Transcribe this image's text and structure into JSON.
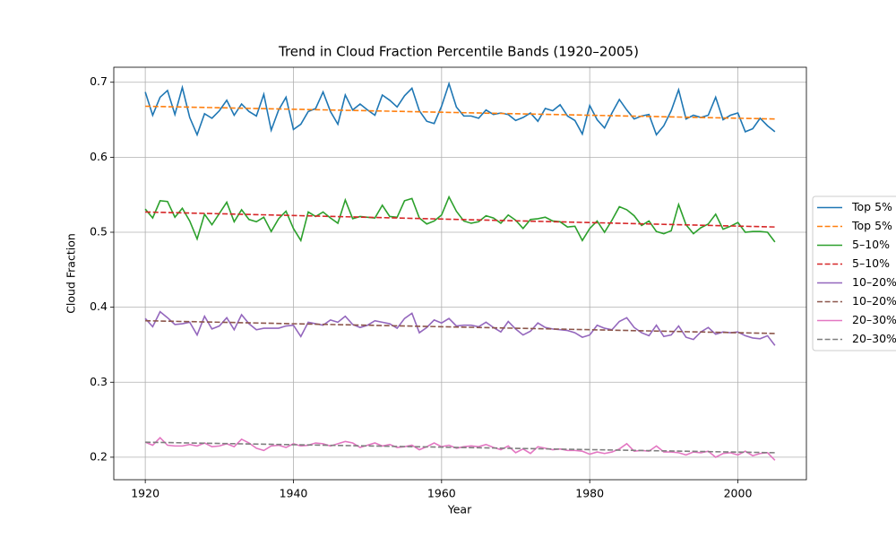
{
  "chart_data": {
    "type": "line",
    "title": "Trend in Cloud Fraction Percentile Bands (1920–2005)",
    "xlabel": "Year",
    "ylabel": "Cloud Fraction",
    "x": [
      1920,
      1921,
      1922,
      1923,
      1924,
      1925,
      1926,
      1927,
      1928,
      1929,
      1930,
      1931,
      1932,
      1933,
      1934,
      1935,
      1936,
      1937,
      1938,
      1939,
      1940,
      1941,
      1942,
      1943,
      1944,
      1945,
      1946,
      1947,
      1948,
      1949,
      1950,
      1951,
      1952,
      1953,
      1954,
      1955,
      1956,
      1957,
      1958,
      1959,
      1960,
      1961,
      1962,
      1963,
      1964,
      1965,
      1966,
      1967,
      1968,
      1969,
      1970,
      1971,
      1972,
      1973,
      1974,
      1975,
      1976,
      1977,
      1978,
      1979,
      1980,
      1981,
      1982,
      1983,
      1984,
      1985,
      1986,
      1987,
      1988,
      1989,
      1990,
      1991,
      1992,
      1993,
      1994,
      1995,
      1996,
      1997,
      1998,
      1999,
      2000,
      2001,
      2002,
      2003,
      2004,
      2005
    ],
    "series": [
      {
        "name": "Top 5%",
        "color": "#1f77b4",
        "linestyle": "solid",
        "values": [
          0.687,
          0.656,
          0.68,
          0.689,
          0.657,
          0.693,
          0.653,
          0.63,
          0.658,
          0.652,
          0.662,
          0.676,
          0.656,
          0.671,
          0.661,
          0.655,
          0.684,
          0.636,
          0.663,
          0.68,
          0.637,
          0.644,
          0.661,
          0.665,
          0.687,
          0.661,
          0.644,
          0.683,
          0.663,
          0.671,
          0.663,
          0.656,
          0.683,
          0.676,
          0.667,
          0.682,
          0.692,
          0.662,
          0.648,
          0.645,
          0.668,
          0.698,
          0.667,
          0.655,
          0.655,
          0.652,
          0.663,
          0.657,
          0.659,
          0.657,
          0.649,
          0.653,
          0.659,
          0.648,
          0.665,
          0.662,
          0.67,
          0.655,
          0.649,
          0.631,
          0.669,
          0.65,
          0.639,
          0.659,
          0.677,
          0.663,
          0.651,
          0.655,
          0.657,
          0.63,
          0.642,
          0.662,
          0.69,
          0.651,
          0.656,
          0.653,
          0.656,
          0.68,
          0.65,
          0.656,
          0.659,
          0.634,
          0.638,
          0.652,
          0.642,
          0.634
        ]
      },
      {
        "name": "Top 5%",
        "color": "#ff7f0e",
        "linestyle": "dashed",
        "x": [
          1920,
          2005
        ],
        "values": [
          0.668,
          0.651
        ]
      },
      {
        "name": "5–10%",
        "color": "#2ca02c",
        "linestyle": "solid",
        "values": [
          0.531,
          0.519,
          0.542,
          0.541,
          0.52,
          0.532,
          0.515,
          0.491,
          0.524,
          0.51,
          0.525,
          0.54,
          0.514,
          0.53,
          0.517,
          0.514,
          0.52,
          0.501,
          0.518,
          0.528,
          0.505,
          0.489,
          0.527,
          0.521,
          0.527,
          0.519,
          0.512,
          0.543,
          0.518,
          0.521,
          0.52,
          0.519,
          0.536,
          0.521,
          0.52,
          0.542,
          0.545,
          0.519,
          0.511,
          0.515,
          0.523,
          0.547,
          0.528,
          0.515,
          0.512,
          0.514,
          0.522,
          0.519,
          0.512,
          0.523,
          0.516,
          0.505,
          0.517,
          0.518,
          0.52,
          0.515,
          0.514,
          0.507,
          0.508,
          0.489,
          0.505,
          0.515,
          0.5,
          0.516,
          0.534,
          0.53,
          0.522,
          0.509,
          0.515,
          0.501,
          0.498,
          0.502,
          0.537,
          0.51,
          0.498,
          0.506,
          0.511,
          0.524,
          0.504,
          0.508,
          0.513,
          0.5,
          0.501,
          0.501,
          0.5,
          0.487
        ]
      },
      {
        "name": "5–10%",
        "color": "#d62728",
        "linestyle": "dashed",
        "x": [
          1920,
          2005
        ],
        "values": [
          0.527,
          0.507
        ]
      },
      {
        "name": "10–20%",
        "color": "#9467bd",
        "linestyle": "solid",
        "values": [
          0.385,
          0.374,
          0.394,
          0.386,
          0.377,
          0.378,
          0.38,
          0.363,
          0.388,
          0.371,
          0.375,
          0.386,
          0.37,
          0.39,
          0.378,
          0.37,
          0.372,
          0.372,
          0.372,
          0.375,
          0.376,
          0.361,
          0.38,
          0.378,
          0.376,
          0.383,
          0.38,
          0.388,
          0.377,
          0.373,
          0.376,
          0.382,
          0.38,
          0.378,
          0.372,
          0.385,
          0.392,
          0.366,
          0.373,
          0.383,
          0.379,
          0.385,
          0.375,
          0.376,
          0.376,
          0.374,
          0.38,
          0.373,
          0.367,
          0.381,
          0.371,
          0.363,
          0.368,
          0.379,
          0.373,
          0.371,
          0.37,
          0.369,
          0.366,
          0.36,
          0.363,
          0.376,
          0.372,
          0.37,
          0.381,
          0.386,
          0.373,
          0.366,
          0.362,
          0.376,
          0.361,
          0.363,
          0.375,
          0.36,
          0.357,
          0.367,
          0.373,
          0.364,
          0.367,
          0.366,
          0.367,
          0.362,
          0.359,
          0.358,
          0.362,
          0.349
        ]
      },
      {
        "name": "10–20%",
        "color": "#8c564b",
        "linestyle": "dashed",
        "x": [
          1920,
          2005
        ],
        "values": [
          0.382,
          0.365
        ]
      },
      {
        "name": "20–30%",
        "color": "#e377c2",
        "linestyle": "solid",
        "values": [
          0.22,
          0.216,
          0.226,
          0.216,
          0.215,
          0.215,
          0.217,
          0.215,
          0.219,
          0.214,
          0.215,
          0.218,
          0.214,
          0.224,
          0.219,
          0.212,
          0.209,
          0.215,
          0.216,
          0.213,
          0.218,
          0.215,
          0.216,
          0.219,
          0.218,
          0.215,
          0.218,
          0.221,
          0.219,
          0.213,
          0.216,
          0.219,
          0.215,
          0.217,
          0.213,
          0.214,
          0.216,
          0.21,
          0.214,
          0.219,
          0.214,
          0.216,
          0.212,
          0.214,
          0.215,
          0.214,
          0.217,
          0.213,
          0.21,
          0.215,
          0.206,
          0.211,
          0.205,
          0.214,
          0.212,
          0.21,
          0.211,
          0.209,
          0.209,
          0.208,
          0.204,
          0.207,
          0.205,
          0.207,
          0.211,
          0.218,
          0.208,
          0.209,
          0.208,
          0.215,
          0.207,
          0.207,
          0.206,
          0.203,
          0.207,
          0.206,
          0.208,
          0.2,
          0.205,
          0.206,
          0.203,
          0.208,
          0.202,
          0.205,
          0.206,
          0.196
        ]
      },
      {
        "name": "20–30%",
        "color": "#7f7f7f",
        "linestyle": "dashed",
        "x": [
          1920,
          2005
        ],
        "values": [
          0.22,
          0.206
        ]
      }
    ],
    "xlim": [
      1915.75,
      2009.25
    ],
    "xticks": [
      1920,
      1940,
      1960,
      1980,
      2000
    ],
    "ylim": [
      0.17,
      0.72
    ],
    "yticks": [
      0.2,
      0.3,
      0.4,
      0.5,
      0.6,
      0.7
    ],
    "grid": true,
    "legend": "right"
  }
}
